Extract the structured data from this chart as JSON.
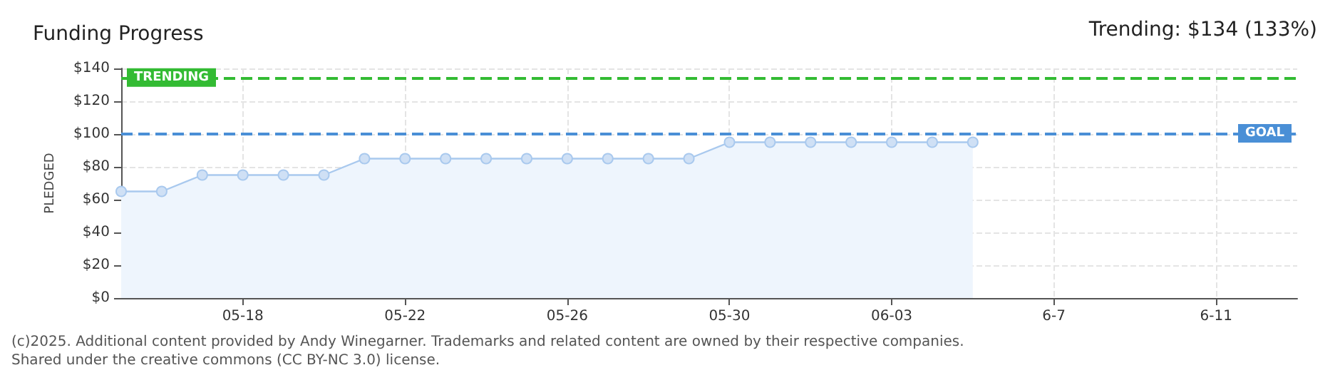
{
  "chart_data": {
    "type": "area",
    "title": "Funding Progress",
    "ylabel": "PLEDGED",
    "annotations": [
      "Trending: $134 (133%)",
      "(c)2025. Additional content provided by Andy Winegarner. Trademarks and related content are owned by their respective companies.",
      "Shared under the creative commons (CC BY-NC 3.0) license."
    ],
    "x": [
      "--05-15",
      "--05-16",
      "--05-17",
      "--05-18",
      "--05-19",
      "--05-20",
      "--05-21",
      "--05-22",
      "--05-23",
      "--05-24",
      "--05-25",
      "--05-26",
      "--05-27",
      "--05-28",
      "--05-29",
      "--05-30",
      "--05-31",
      "--06-01",
      "--06-02",
      "--06-03",
      "--06-04",
      "--06-05"
    ],
    "series": [
      {
        "color": "#a9c9ee",
        "values": [
          65,
          65,
          75,
          75,
          75,
          75,
          85,
          85,
          85,
          85,
          85,
          85,
          85,
          85,
          85,
          95,
          95,
          95,
          95,
          95,
          95,
          95
        ]
      }
    ],
    "xlim": [
      "--05-15",
      "--06-13"
    ],
    "xticks": [
      {
        "value": "--05-18",
        "label": "05-18"
      },
      {
        "value": "--05-22",
        "label": "05-22"
      },
      {
        "value": "--05-26",
        "label": "05-26"
      },
      {
        "value": "--05-30",
        "label": "05-30"
      },
      {
        "value": "--06-03",
        "label": "06-03"
      },
      {
        "value": "--06-07",
        "label": "6-7"
      },
      {
        "value": "--06-11",
        "label": "6-11"
      }
    ],
    "ylim": [
      0,
      140
    ],
    "yticks": [
      {
        "value": 0,
        "label": "$0"
      },
      {
        "value": 20,
        "label": "$20"
      },
      {
        "value": 40,
        "label": "$40"
      },
      {
        "value": 60,
        "label": "$60"
      },
      {
        "value": 80,
        "label": "$80"
      },
      {
        "value": 100,
        "label": "$100"
      },
      {
        "value": 120,
        "label": "$120"
      },
      {
        "value": 140,
        "label": "$140"
      }
    ],
    "ref_lines": [
      {
        "axis": "y",
        "value": 134,
        "label": "TRENDING",
        "color": "#33bb33",
        "line_style": "dashed"
      },
      {
        "axis": "y",
        "value": 100,
        "label": "GOAL",
        "color": "#4a8fd6",
        "line_style": "dashed"
      }
    ],
    "marker": "circle",
    "grid": true
  }
}
